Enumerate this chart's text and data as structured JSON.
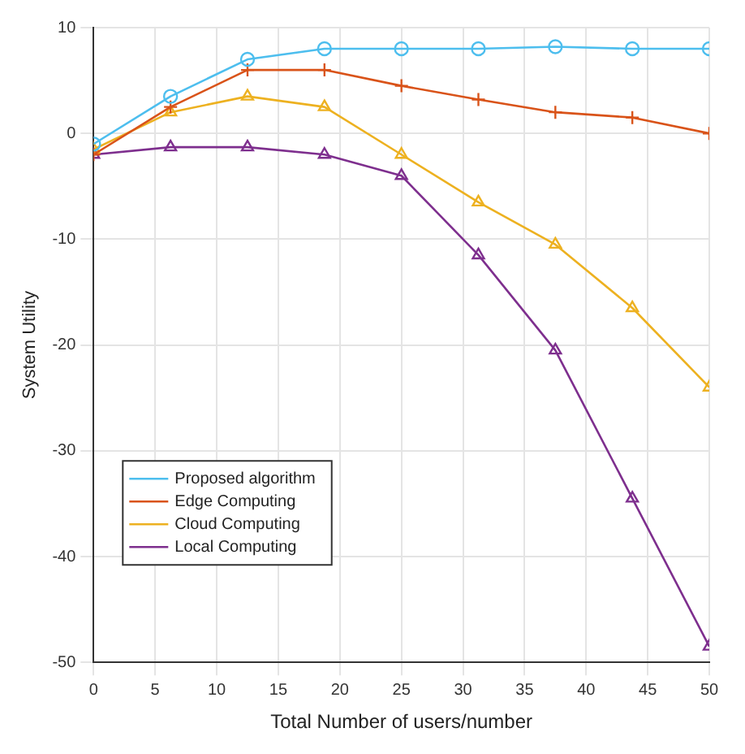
{
  "chart_data": {
    "type": "line",
    "xlabel": "Total Number of users/number",
    "ylabel": "System Utility",
    "x": [
      0,
      6.25,
      12.5,
      18.75,
      25,
      31.25,
      37.5,
      43.75,
      50
    ],
    "xlim": [
      0,
      50
    ],
    "xticks": [
      0,
      5,
      10,
      15,
      20,
      25,
      30,
      35,
      40,
      45,
      50
    ],
    "ylim": [
      -50,
      10
    ],
    "yticks": [
      -50,
      -40,
      -30,
      -20,
      -10,
      0,
      10
    ],
    "grid": true,
    "legend": "bottom left",
    "series": [
      {
        "name": "Proposed algorithm",
        "color": "#4dbeee",
        "marker": "circle",
        "values": [
          -1,
          3.5,
          7,
          8,
          8,
          8,
          8.2,
          8,
          8
        ]
      },
      {
        "name": "Edge Computing",
        "color": "#d95319",
        "marker": "cross",
        "values": [
          -2,
          2.5,
          6,
          6,
          4.5,
          3.2,
          2,
          1.5,
          0
        ]
      },
      {
        "name": "Cloud Computing",
        "color": "#edb120",
        "marker": "triangle",
        "values": [
          -1.5,
          2,
          3.5,
          2.5,
          -2,
          -6.5,
          -10.5,
          -16.5,
          -24
        ]
      },
      {
        "name": "Local Computing",
        "color": "#7e2f8e",
        "marker": "triangle",
        "values": [
          -2,
          -1.3,
          -1.3,
          -2,
          -4,
          -11.5,
          -20.5,
          -34.5,
          -48.5
        ]
      }
    ]
  }
}
